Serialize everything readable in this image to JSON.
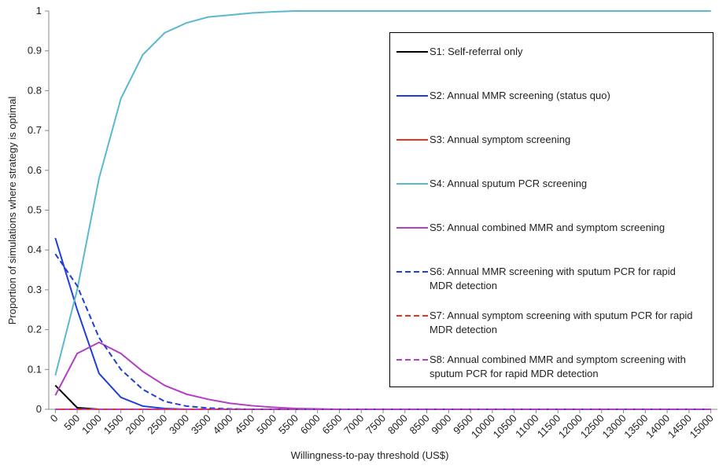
{
  "chart_data": {
    "type": "line",
    "xlabel": "Willingness-to-pay threshold (US$)",
    "ylabel": "Proportion of simulations where strategy is optimal",
    "x": [
      0,
      500,
      1000,
      1500,
      2000,
      2500,
      3000,
      3500,
      4000,
      4500,
      5000,
      5500,
      6000,
      6500,
      7000,
      7500,
      8000,
      8500,
      9000,
      9500,
      10000,
      10500,
      11000,
      11500,
      12000,
      12500,
      13000,
      13500,
      14000,
      14500,
      15000
    ],
    "xlim": [
      -150,
      15150
    ],
    "xticks": [
      0,
      500,
      1000,
      1500,
      2000,
      2500,
      3000,
      3500,
      4000,
      4500,
      5000,
      5500,
      6000,
      6500,
      7000,
      7500,
      8000,
      8500,
      9000,
      9500,
      10000,
      10500,
      11000,
      11500,
      12000,
      12500,
      13000,
      13500,
      14000,
      14500,
      15000
    ],
    "ylim": [
      0,
      1
    ],
    "yticks": [
      0,
      0.1,
      0.2,
      0.3,
      0.4,
      0.5,
      0.6,
      0.7,
      0.8,
      0.9,
      1
    ],
    "grid": false,
    "legend": "upper right",
    "series": [
      {
        "name": "S1: Self-referral only",
        "color": "#000000",
        "dash": false,
        "values": [
          0.06,
          0.004,
          0,
          0,
          0,
          0,
          0,
          0,
          0,
          0,
          0,
          0,
          0,
          0,
          0,
          0,
          0,
          0,
          0,
          0,
          0,
          0,
          0,
          0,
          0,
          0,
          0,
          0,
          0,
          0,
          0
        ]
      },
      {
        "name": "S2: Annual MMR screening (status quo)",
        "color": "#1f3fd6",
        "dash": false,
        "values": [
          0.43,
          0.25,
          0.09,
          0.03,
          0.008,
          0.002,
          0,
          0,
          0,
          0,
          0,
          0,
          0,
          0,
          0,
          0,
          0,
          0,
          0,
          0,
          0,
          0,
          0,
          0,
          0,
          0,
          0,
          0,
          0,
          0,
          0
        ]
      },
      {
        "name": "S3: Annual symptom screening",
        "color": "#e8341c",
        "dash": false,
        "values": [
          0,
          0,
          0,
          0,
          0,
          0,
          0,
          0,
          0,
          0,
          0,
          0,
          0,
          0,
          0,
          0,
          0,
          0,
          0,
          0,
          0,
          0,
          0,
          0,
          0,
          0,
          0,
          0,
          0,
          0,
          0
        ]
      },
      {
        "name": "S4: Annual sputum PCR screening",
        "color": "#5bb8d0",
        "dash": false,
        "values": [
          0.085,
          0.3,
          0.58,
          0.78,
          0.89,
          0.945,
          0.97,
          0.985,
          0.99,
          0.995,
          0.998,
          1,
          1,
          1,
          1,
          1,
          1,
          1,
          1,
          1,
          1,
          1,
          1,
          1,
          1,
          1,
          1,
          1,
          1,
          1,
          1
        ]
      },
      {
        "name": "S5: Annual combined MMR and symptom screening",
        "color": "#b23fc4",
        "dash": false,
        "values": [
          0.035,
          0.14,
          0.168,
          0.14,
          0.095,
          0.06,
          0.038,
          0.025,
          0.015,
          0.009,
          0.005,
          0.002,
          0.001,
          0,
          0,
          0,
          0,
          0,
          0,
          0,
          0,
          0,
          0,
          0,
          0,
          0,
          0,
          0,
          0,
          0,
          0
        ]
      },
      {
        "name": "S6: Annual MMR screening with sputum PCR for rapid MDR detection",
        "color": "#1f3fd6",
        "dash": true,
        "values": [
          0.39,
          0.31,
          0.18,
          0.1,
          0.05,
          0.02,
          0.008,
          0.003,
          0.001,
          0,
          0,
          0,
          0,
          0,
          0,
          0,
          0,
          0,
          0,
          0,
          0,
          0,
          0,
          0,
          0,
          0,
          0,
          0,
          0,
          0,
          0
        ]
      },
      {
        "name": "S7: Annual symptom screening with sputum PCR for rapid MDR detection",
        "color": "#e8341c",
        "dash": true,
        "values": [
          0,
          0,
          0,
          0,
          0,
          0,
          0,
          0,
          0,
          0,
          0,
          0,
          0,
          0,
          0,
          0,
          0,
          0,
          0,
          0,
          0,
          0,
          0,
          0,
          0,
          0,
          0,
          0,
          0,
          0,
          0
        ]
      },
      {
        "name": "S8: Annual combined MMR and symptom screening with sputum PCR for rapid MDR detection",
        "color": "#b23fc4",
        "dash": true,
        "values": [
          0,
          0,
          0,
          0,
          0,
          0,
          0,
          0,
          0,
          0,
          0,
          0,
          0,
          0,
          0,
          0,
          0,
          0,
          0,
          0,
          0,
          0,
          0,
          0,
          0,
          0,
          0,
          0,
          0,
          0,
          0
        ]
      }
    ]
  }
}
